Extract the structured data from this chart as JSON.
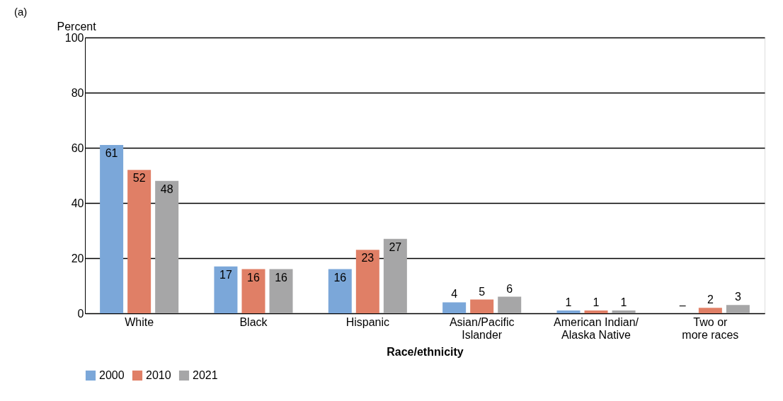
{
  "chart_data": {
    "type": "bar",
    "annotations": [
      "(a)"
    ],
    "ylabel": "Percent",
    "xlabel": "Race/ethnicity",
    "categories": [
      "White",
      "Black",
      "Hispanic",
      "Asian/Pacific Islander",
      "American Indian/ Alaska Native",
      "Two or more races"
    ],
    "series": [
      {
        "name": "2000",
        "color": "#7ba7d9",
        "values": [
          61,
          17,
          16,
          4,
          1,
          null
        ],
        "value_labels": [
          "61",
          "17",
          "16",
          "4",
          "1",
          "–"
        ]
      },
      {
        "name": "2010",
        "color": "#e07f66",
        "values": [
          52,
          16,
          23,
          5,
          1,
          2
        ],
        "value_labels": [
          "52",
          "16",
          "23",
          "5",
          "1",
          "2"
        ]
      },
      {
        "name": "2021",
        "color": "#a6a6a7",
        "values": [
          48,
          16,
          27,
          6,
          1,
          3
        ],
        "value_labels": [
          "48",
          "16",
          "27",
          "6",
          "1",
          "3"
        ]
      }
    ],
    "ylim": [
      0,
      100
    ],
    "yticks": [
      0,
      20,
      40,
      60,
      80,
      100
    ],
    "grid": "y",
    "legend": "bottom"
  }
}
